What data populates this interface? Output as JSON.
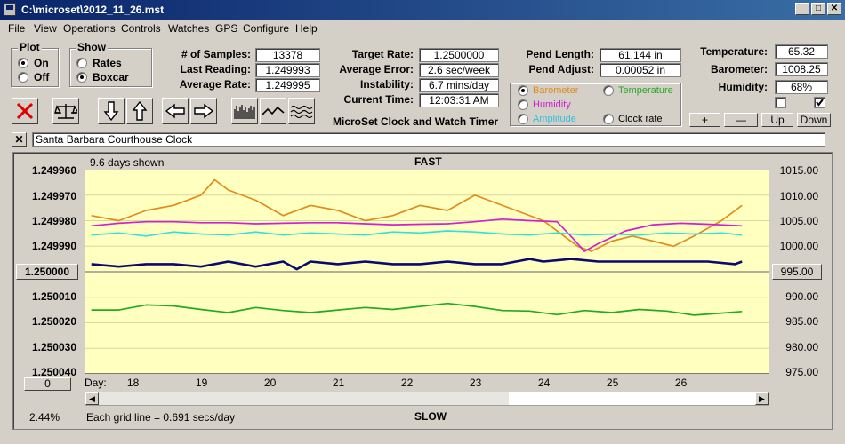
{
  "window": {
    "title": "C:\\microset\\2012_11_26.mst"
  },
  "menu": [
    "File",
    "View",
    "Operations",
    "Controls",
    "Watches",
    "GPS",
    "Configure",
    "Help"
  ],
  "plot_group": {
    "title": "Plot",
    "on": "On",
    "off": "Off",
    "selected": "On"
  },
  "show_group": {
    "title": "Show",
    "rates": "Rates",
    "boxcar": "Boxcar",
    "selected": "Boxcar"
  },
  "stats": {
    "samples_label": "# of Samples:",
    "samples": "13378",
    "last_label": "Last Reading:",
    "last": "1.249993",
    "avg_label": "Average Rate:",
    "avg": "1.249995"
  },
  "target": {
    "target_label": "Target Rate:",
    "target": "1.2500000",
    "error_label": "Average Error:",
    "error": "2.6 sec/week",
    "instab_label": "Instability:",
    "instab": "6.7 mins/day",
    "time_label": "Current Time:",
    "time": "12:03:31 AM"
  },
  "pend": {
    "length_label": "Pend Length:",
    "length": "61.144 in",
    "adjust_label": "Pend Adjust:",
    "adjust": "0.00052 in"
  },
  "env": {
    "temp_label": "Temperature:",
    "temp": "65.32",
    "baro_label": "Barometer:",
    "baro": "1008.25",
    "hum_label": "Humidity:",
    "hum": "68%"
  },
  "sensor_select": {
    "barometer": "Barometer",
    "temperature": "Temperature",
    "humidity": "Humidity",
    "amplitude": "Amplitude",
    "clockrate": "Clock rate",
    "selected": "Barometer"
  },
  "colors": {
    "barometer": "#e08c1c",
    "temperature": "#22aa22",
    "humidity": "#d020d0",
    "amplitude": "#30e0e0",
    "rate": "#0a0a6e",
    "plot_bg": "#ffffc0"
  },
  "app_caption": "MicroSet Clock and Watch Timer",
  "adjust_buttons": [
    "+",
    "—",
    "Up",
    "Down"
  ],
  "clock_name": "Santa Barbara Courthouse Clock",
  "chart": {
    "days_shown": "9.6 days shown",
    "top_label": "FAST",
    "bottom_label": "SLOW",
    "grid_note": "Each grid line = 0.691 secs/day",
    "percent": "2.44%",
    "left_ticks": [
      "1.249960",
      "1.249970",
      "1.249980",
      "1.249990",
      "1.250010",
      "1.250020",
      "1.250030",
      "1.250040"
    ],
    "center_value": "1.250000",
    "right_ticks": [
      "1015.00",
      "1010.00",
      "1005.00",
      "1000.00",
      "990.00",
      "985.00",
      "980.00",
      "975.00"
    ],
    "right_center": "995.00",
    "day_label": "Day:",
    "days": [
      "18",
      "19",
      "20",
      "21",
      "22",
      "23",
      "24",
      "25",
      "26"
    ],
    "scroll_value": "0"
  },
  "chart_data": {
    "type": "line",
    "x_label": "Day:",
    "x_ticks": [
      "18",
      "19",
      "20",
      "21",
      "22",
      "23",
      "24",
      "25",
      "26"
    ],
    "xlim": [
      17.3,
      27.3
    ],
    "left_axis": {
      "ylim": [
        1.24996,
        1.25004
      ],
      "ticks": [
        1.24996,
        1.24997,
        1.24998,
        1.24999,
        1.25,
        1.25001,
        1.25002,
        1.25003,
        1.25004
      ]
    },
    "right_axis": {
      "ylim": [
        975,
        1015
      ],
      "ticks": [
        1015,
        1010,
        1005,
        1000,
        995,
        990,
        985,
        980,
        975
      ]
    },
    "series": [
      {
        "name": "Barometer",
        "axis": "right",
        "x": [
          17.4,
          17.8,
          18.2,
          18.6,
          19.0,
          19.2,
          19.4,
          19.8,
          20.2,
          20.6,
          21.0,
          21.4,
          21.8,
          22.2,
          22.6,
          23.0,
          23.2,
          23.6,
          24.0,
          24.3,
          24.5,
          24.7,
          25.0,
          25.3,
          25.6,
          25.9,
          26.2,
          26.6,
          26.9
        ],
        "y": [
          1006,
          1005,
          1007,
          1008,
          1010,
          1013,
          1011,
          1009,
          1006,
          1008,
          1007,
          1005,
          1006,
          1008,
          1007,
          1010,
          1009,
          1007,
          1005,
          1002,
          1000,
          999,
          1001,
          1002,
          1001,
          1000,
          1002,
          1005,
          1008
        ]
      },
      {
        "name": "Temperature",
        "axis": "right",
        "x": [
          17.4,
          17.8,
          18.2,
          18.6,
          19.0,
          19.4,
          19.8,
          20.2,
          20.6,
          21.0,
          21.4,
          21.8,
          22.2,
          22.6,
          23.0,
          23.4,
          23.8,
          24.2,
          24.6,
          25.0,
          25.4,
          25.8,
          26.2,
          26.6,
          26.9
        ],
        "y": [
          987.5,
          987.5,
          988.5,
          988.3,
          987.6,
          987.0,
          988.0,
          987.4,
          987.0,
          987.5,
          988.0,
          987.6,
          988.2,
          988.8,
          988.2,
          987.4,
          987.3,
          986.6,
          987.4,
          987.0,
          987.6,
          987.3,
          986.5,
          986.9,
          987.2
        ]
      },
      {
        "name": "Humidity",
        "axis": "right",
        "x": [
          17.4,
          17.8,
          18.2,
          18.6,
          19.0,
          19.4,
          19.8,
          20.2,
          20.6,
          21.0,
          21.4,
          21.8,
          22.2,
          22.6,
          23.0,
          23.4,
          23.8,
          24.2,
          24.4,
          24.6,
          24.8,
          25.2,
          25.6,
          26.0,
          26.4,
          26.9
        ],
        "y": [
          1004.0,
          1004.5,
          1004.8,
          1004.8,
          1004.6,
          1004.6,
          1004.4,
          1004.5,
          1004.6,
          1004.6,
          1004.4,
          1004.2,
          1004.3,
          1004.4,
          1004.8,
          1005.3,
          1005.0,
          1004.8,
          1002.0,
          999.0,
          1000.5,
          1003.0,
          1004.2,
          1004.5,
          1004.3,
          1004.0
        ]
      },
      {
        "name": "Amplitude",
        "axis": "right",
        "x": [
          17.4,
          17.8,
          18.2,
          18.6,
          19.0,
          19.4,
          19.8,
          20.2,
          20.6,
          21.0,
          21.4,
          21.8,
          22.2,
          22.6,
          23.0,
          23.4,
          23.8,
          24.2,
          24.6,
          25.0,
          25.4,
          25.8,
          26.2,
          26.6,
          26.9
        ],
        "y": [
          1002.2,
          1002.6,
          1002.0,
          1002.8,
          1002.4,
          1002.2,
          1002.8,
          1002.2,
          1002.6,
          1002.4,
          1002.2,
          1002.8,
          1002.6,
          1003.0,
          1002.8,
          1002.4,
          1002.2,
          1002.6,
          1002.2,
          1002.4,
          1002.2,
          1002.6,
          1002.4,
          1002.6,
          1002.2
        ]
      },
      {
        "name": "Rate",
        "axis": "left",
        "x": [
          17.4,
          17.8,
          18.2,
          18.6,
          19.0,
          19.4,
          19.8,
          20.2,
          20.4,
          20.6,
          21.0,
          21.4,
          21.8,
          22.2,
          22.6,
          23.0,
          23.4,
          23.8,
          24.0,
          24.4,
          24.8,
          25.2,
          25.6,
          26.0,
          26.4,
          26.8,
          26.9
        ],
        "y": [
          1.249997,
          1.249998,
          1.249997,
          1.249997,
          1.249998,
          1.249996,
          1.249998,
          1.249996,
          1.249999,
          1.249996,
          1.249997,
          1.249996,
          1.249997,
          1.249997,
          1.249996,
          1.249997,
          1.249997,
          1.249995,
          1.249996,
          1.249995,
          1.249996,
          1.249996,
          1.249996,
          1.249996,
          1.249996,
          1.249997,
          1.249996
        ]
      }
    ]
  }
}
